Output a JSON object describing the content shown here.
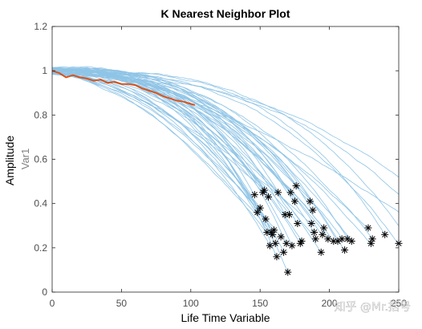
{
  "chart_data": {
    "type": "line",
    "title": "K Nearest Neighbor Plot",
    "xlabel": "Life Time Variable",
    "ylabel": "Amplitude",
    "ylabel_secondary": "Var1",
    "xlim": [
      0,
      250
    ],
    "ylim": [
      0,
      1.2
    ],
    "xticks": [
      0,
      50,
      100,
      150,
      200,
      250
    ],
    "yticks": [
      0,
      0.2,
      0.4,
      0.6,
      0.8,
      1.0,
      1.2
    ],
    "xtick_labels": [
      "0",
      "50",
      "100",
      "150",
      "200",
      "250"
    ],
    "ytick_labels": [
      "0",
      "0.2",
      "0.4",
      "0.6",
      "0.8",
      "1",
      "1.2"
    ],
    "grid": false,
    "colors": {
      "neighbors": "#8fc4e6",
      "query": "#d95319",
      "end_marker": "#000000"
    },
    "neighbor_end_points": [
      [
        146,
        0.44
      ],
      [
        148,
        0.36
      ],
      [
        150,
        0.38
      ],
      [
        152,
        0.45
      ],
      [
        153,
        0.46
      ],
      [
        154,
        0.33
      ],
      [
        155,
        0.27
      ],
      [
        156,
        0.43
      ],
      [
        157,
        0.21
      ],
      [
        158,
        0.27
      ],
      [
        159,
        0.26
      ],
      [
        160,
        0.28
      ],
      [
        161,
        0.22
      ],
      [
        162,
        0.16
      ],
      [
        163,
        0.45
      ],
      [
        165,
        0.25
      ],
      [
        167,
        0.18
      ],
      [
        168,
        0.35
      ],
      [
        169,
        0.22
      ],
      [
        170,
        0.09
      ],
      [
        171,
        0.35
      ],
      [
        172,
        0.45
      ],
      [
        173,
        0.21
      ],
      [
        175,
        0.41
      ],
      [
        176,
        0.48
      ],
      [
        177,
        0.31
      ],
      [
        179,
        0.22
      ],
      [
        180,
        0.23
      ],
      [
        186,
        0.41
      ],
      [
        187,
        0.31
      ],
      [
        188,
        0.37
      ],
      [
        189,
        0.27
      ],
      [
        190,
        0.24
      ],
      [
        194,
        0.18
      ],
      [
        195,
        0.26
      ],
      [
        196,
        0.29
      ],
      [
        199,
        0.24
      ],
      [
        203,
        0.23
      ],
      [
        206,
        0.23
      ],
      [
        209,
        0.24
      ],
      [
        211,
        0.19
      ],
      [
        213,
        0.24
      ],
      [
        216,
        0.23
      ],
      [
        228,
        0.29
      ],
      [
        230,
        0.22
      ],
      [
        231,
        0.24
      ],
      [
        240,
        0.26
      ],
      [
        250,
        0.22
      ]
    ],
    "query_series": {
      "x": [
        0,
        5,
        10,
        15,
        20,
        25,
        30,
        35,
        40,
        45,
        50,
        55,
        60,
        65,
        70,
        75,
        80,
        85,
        90,
        95,
        100,
        103
      ],
      "y": [
        1.0,
        0.99,
        0.97,
        0.98,
        0.97,
        0.965,
        0.955,
        0.96,
        0.945,
        0.95,
        0.94,
        0.94,
        0.935,
        0.92,
        0.91,
        0.9,
        0.885,
        0.875,
        0.865,
        0.86,
        0.85,
        0.845
      ]
    }
  },
  "watermark_text": "知乎 @Mr.括号"
}
